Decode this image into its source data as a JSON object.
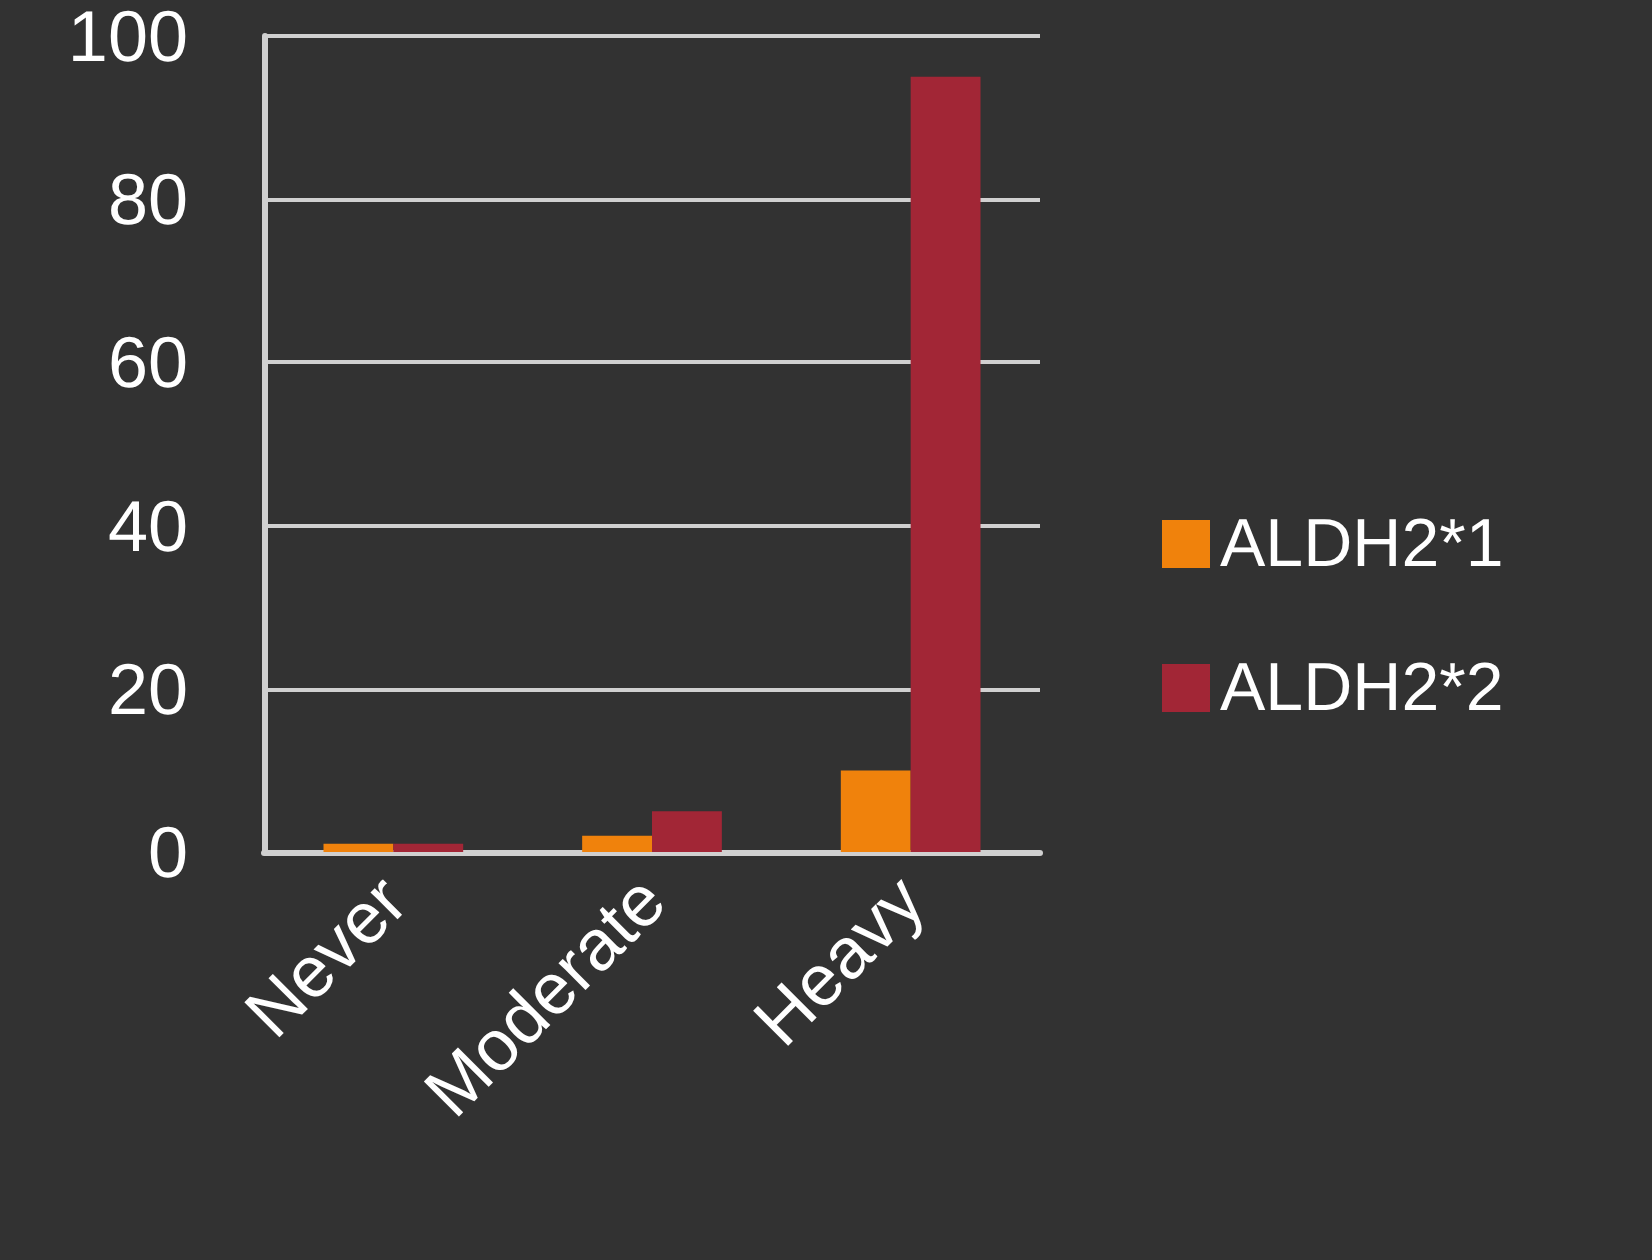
{
  "chart_data": {
    "type": "bar",
    "categories": [
      "Never",
      "Moderate",
      "Heavy"
    ],
    "series": [
      {
        "name": "ALDH2*1",
        "color": "#f0820c",
        "values": [
          1,
          2,
          10
        ]
      },
      {
        "name": "ALDH2*2",
        "color": "#a22636",
        "values": [
          1,
          5,
          95
        ]
      }
    ],
    "ylim": [
      0,
      100
    ],
    "yticks": [
      0,
      20,
      40,
      60,
      80,
      100
    ],
    "grid": true,
    "legend": "right"
  }
}
